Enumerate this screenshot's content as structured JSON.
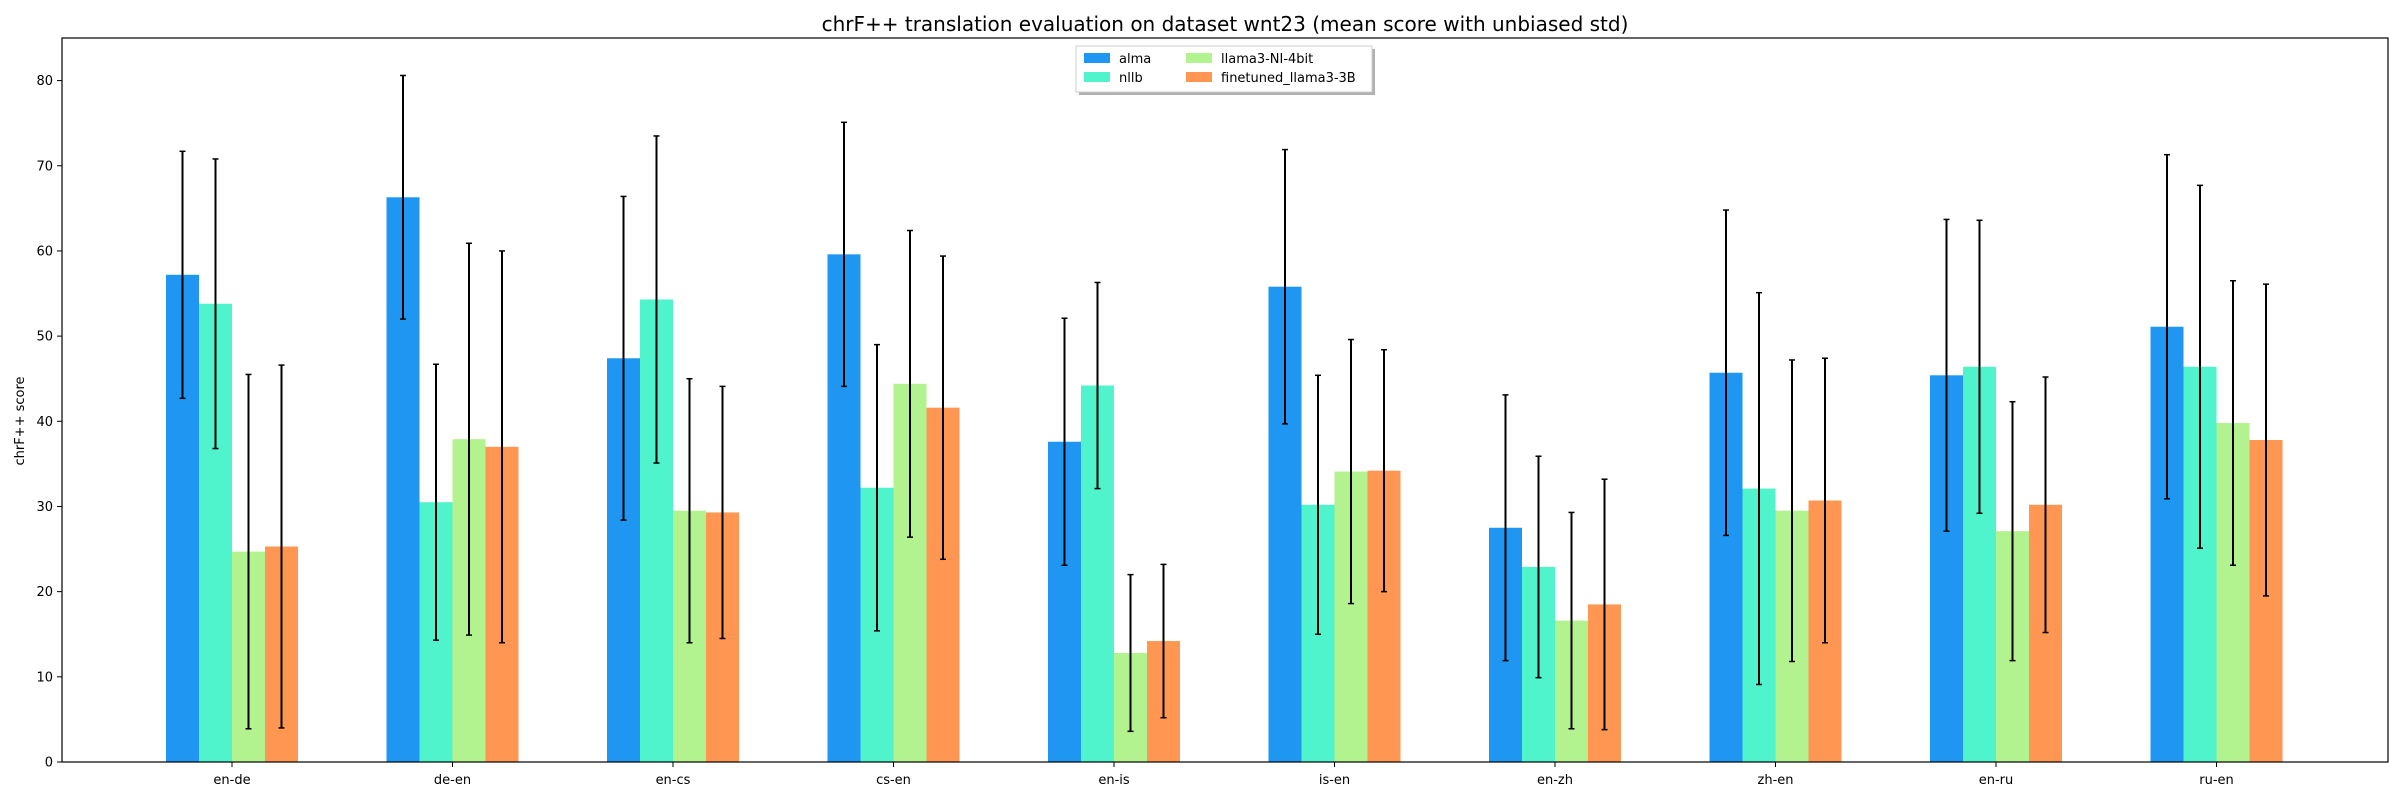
{
  "chart_data": {
    "type": "bar",
    "title": "chrF++ translation evaluation on dataset wnt23 (mean score with unbiased std)",
    "xlabel": "",
    "ylabel": "chrF++ score",
    "ylim": [
      0,
      85
    ],
    "yticks": [
      0,
      10,
      20,
      30,
      40,
      50,
      60,
      70,
      80
    ],
    "grid": false,
    "legend_position": "top-center",
    "categories": [
      "en-de",
      "de-en",
      "en-cs",
      "cs-en",
      "en-is",
      "is-en",
      "en-zh",
      "zh-en",
      "en-ru",
      "ru-en"
    ],
    "series": [
      {
        "name": "alma",
        "color": "#1f96f2",
        "values": [
          57.2,
          66.3,
          47.4,
          59.6,
          37.6,
          55.8,
          27.5,
          45.7,
          45.4,
          51.1
        ],
        "errors": [
          14.5,
          14.3,
          19.0,
          15.5,
          14.5,
          16.1,
          15.6,
          19.1,
          18.3,
          20.2
        ]
      },
      {
        "name": "nllb",
        "color": "#4ff3cc",
        "values": [
          53.8,
          30.5,
          54.3,
          32.2,
          44.2,
          30.2,
          22.9,
          32.1,
          46.4,
          46.4
        ],
        "errors": [
          17.0,
          16.2,
          19.2,
          16.8,
          12.1,
          15.2,
          13.0,
          23.0,
          17.2,
          21.3
        ]
      },
      {
        "name": "llama3-NI-4bit",
        "color": "#b2f28f",
        "values": [
          24.7,
          37.9,
          29.5,
          44.4,
          12.8,
          34.1,
          16.6,
          29.5,
          27.1,
          39.8
        ],
        "errors": [
          20.8,
          23.0,
          15.5,
          18.0,
          9.2,
          15.5,
          12.7,
          17.7,
          15.2,
          16.7
        ]
      },
      {
        "name": "finetuned_llama3-3B",
        "color": "#ff9651",
        "values": [
          25.3,
          37.0,
          29.3,
          41.6,
          14.2,
          34.2,
          18.5,
          30.7,
          30.2,
          37.8
        ],
        "errors": [
          21.3,
          23.0,
          14.8,
          17.8,
          9.0,
          14.2,
          14.7,
          16.7,
          15.0,
          18.3
        ]
      }
    ]
  }
}
